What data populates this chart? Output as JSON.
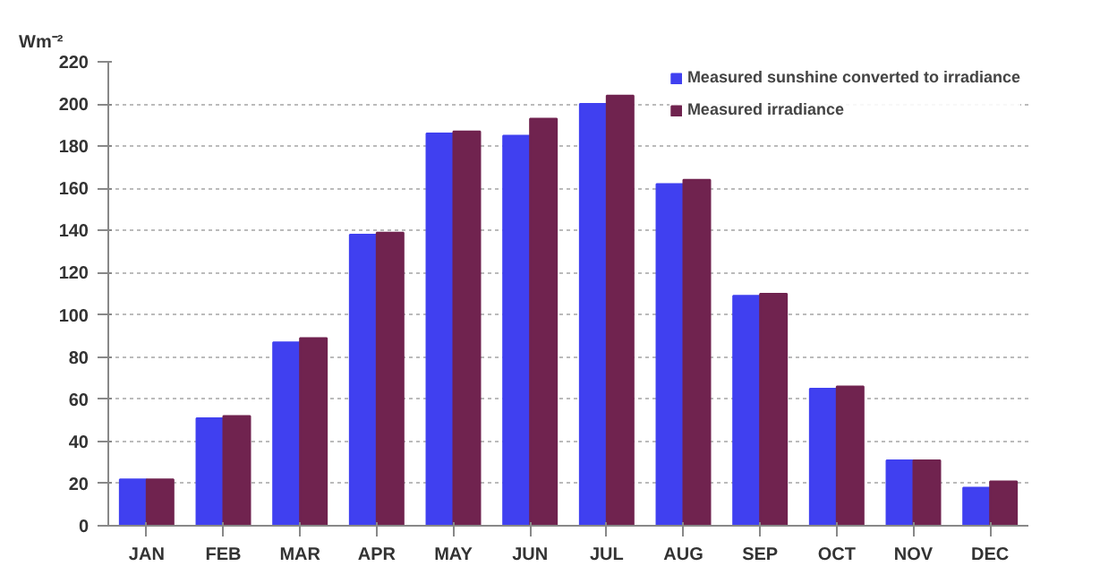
{
  "chart_data": {
    "type": "bar",
    "ylabel": "Wm⁻²",
    "categories": [
      "JAN",
      "FEB",
      "MAR",
      "APR",
      "MAY",
      "JUN",
      "JUL",
      "AUG",
      "SEP",
      "OCT",
      "NOV",
      "DEC"
    ],
    "series": [
      {
        "name": "Measured sunshine converted to irradiance",
        "color": "#4040f0",
        "values": [
          22,
          51,
          87,
          138,
          186,
          185,
          200,
          162,
          109,
          65,
          31,
          18
        ]
      },
      {
        "name": "Measured irradiance",
        "color": "#70234f",
        "values": [
          22,
          52,
          89,
          139,
          187,
          193,
          204,
          164,
          110,
          66,
          31,
          21
        ]
      }
    ],
    "ylim": [
      0,
      220
    ],
    "yticks": [
      0,
      20,
      40,
      60,
      80,
      100,
      120,
      140,
      160,
      180,
      200,
      220
    ],
    "grid": "y",
    "legend": "top right"
  }
}
